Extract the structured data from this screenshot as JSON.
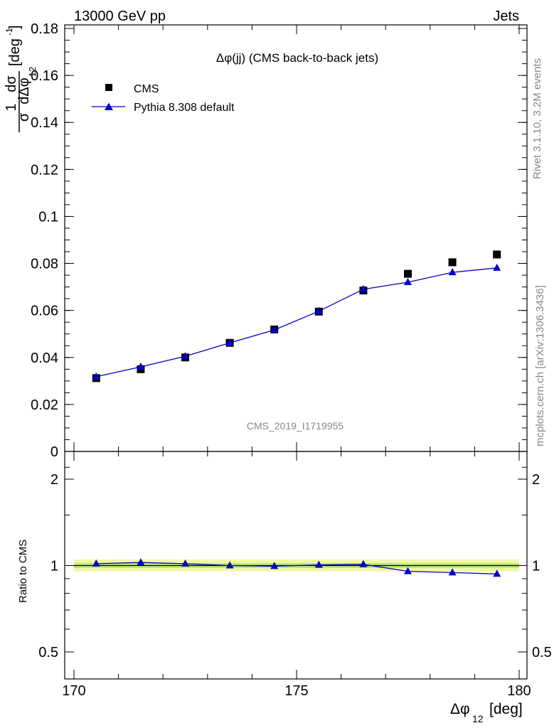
{
  "header": {
    "left": "13000 GeV pp",
    "right": "Jets"
  },
  "plot_title": "Δφ(jj) (CMS back-to-back jets)",
  "watermark": "CMS_2019_I1719955",
  "side_text": {
    "rivet": "Rivet 3.1.10,  3.2M events",
    "mcplots": "mcplots.cern.ch [arXiv:1306.3436]"
  },
  "y_axis_label": {
    "frac": "1",
    "dsigma": "dσ",
    "sigma": "σ",
    "ddphi": "dΔφ",
    "sub": "12",
    "unit_pre": "[deg",
    "unit_sup": "-1",
    "unit_post": "]"
  },
  "ratio_ylabel": "Ratio to CMS",
  "x_axis_label": {
    "main": "Δφ",
    "sub": "12",
    "unit": "[deg]"
  },
  "colors": {
    "data": "#000000",
    "mc": "#0000cc",
    "band_outer": "#f2f7a6",
    "band_inner": "#b8ec7a"
  },
  "chart_data": [
    {
      "type": "scatter",
      "panel": "main",
      "x": [
        170.5,
        171.5,
        172.5,
        173.5,
        174.5,
        175.5,
        176.5,
        177.5,
        178.5,
        179.5
      ],
      "series": [
        {
          "name": "CMS",
          "marker": "square",
          "values": [
            0.0312,
            0.035,
            0.04,
            0.0462,
            0.0519,
            0.0595,
            0.0685,
            0.0756,
            0.0805,
            0.0838
          ]
        },
        {
          "name": "Pythia 8.308 default",
          "marker": "triangle",
          "values": [
            0.0318,
            0.036,
            0.0405,
            0.0462,
            0.0517,
            0.0597,
            0.069,
            0.072,
            0.0762,
            0.0781
          ]
        }
      ],
      "xlim": [
        170,
        180
      ],
      "ylim": [
        0,
        0.18
      ],
      "yticks": [
        "0",
        "0.02",
        "0.04",
        "0.06",
        "0.08",
        "0.1",
        "0.12",
        "0.14",
        "0.16",
        "0.18"
      ],
      "legend": "top-left"
    },
    {
      "type": "line",
      "panel": "ratio",
      "x": [
        170.5,
        171.5,
        172.5,
        173.5,
        174.5,
        175.5,
        176.5,
        177.5,
        178.5,
        179.5
      ],
      "series": [
        {
          "name": "Pythia 8.308 default",
          "values": [
            1.015,
            1.025,
            1.015,
            1.0,
            0.995,
            1.005,
            1.01,
            0.955,
            0.945,
            0.935
          ]
        }
      ],
      "reference_band": 1.0,
      "xlim": [
        170,
        180
      ],
      "ylim": [
        0.4,
        2.4
      ],
      "y_log": true,
      "yticks": [
        "0.5",
        "1",
        "2"
      ],
      "xticks": [
        "170",
        "175",
        "180"
      ]
    }
  ]
}
